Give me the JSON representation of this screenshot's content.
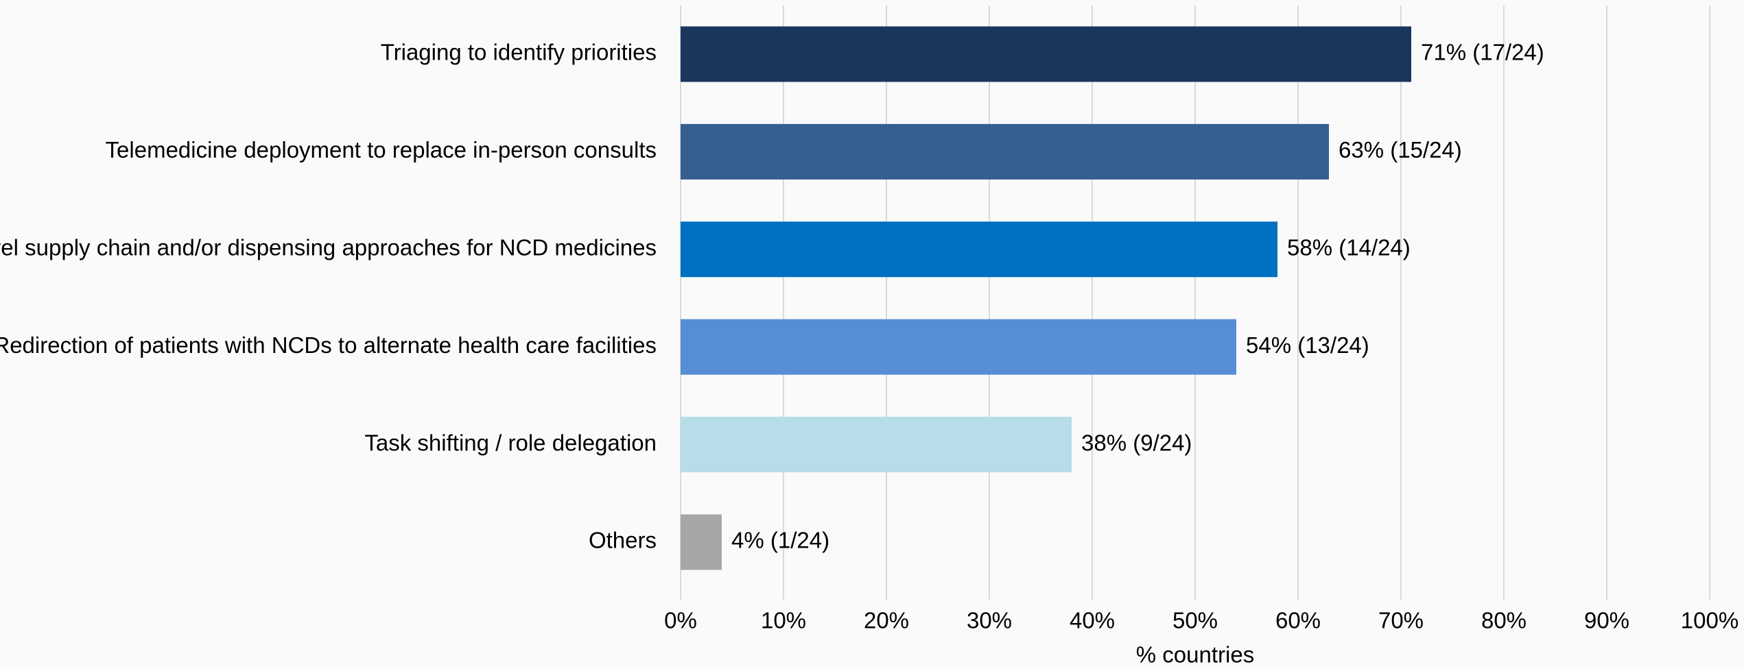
{
  "chart_data": {
    "type": "bar",
    "orientation": "horizontal",
    "categories": [
      "Triaging to identify priorities",
      "Telemedicine deployment to replace in-person consults",
      "Novel supply chain and/or dispensing approaches for NCD medicines",
      "Redirection of patients with NCDs to alternate health care facilities",
      "Task shifting / role delegation",
      "Others"
    ],
    "values": [
      71,
      63,
      58,
      54,
      38,
      4
    ],
    "value_labels": [
      "71% (17/24)",
      "63% (15/24)",
      "58% (14/24)",
      "54% (13/24)",
      "38% (9/24)",
      "4% (1/24)"
    ],
    "colors": [
      "#1b365d",
      "#365f91",
      "#0070c0",
      "#558ed5",
      "#b7dde8",
      "#a6a6a6"
    ],
    "xlabel": "% countries",
    "xlim": [
      0,
      100
    ],
    "xticks": [
      {
        "value": 0,
        "label": "0%"
      },
      {
        "value": 10,
        "label": "10%"
      },
      {
        "value": 20,
        "label": "20%"
      },
      {
        "value": 30,
        "label": "30%"
      },
      {
        "value": 40,
        "label": "40%"
      },
      {
        "value": 50,
        "label": "50%"
      },
      {
        "value": 60,
        "label": "60%"
      },
      {
        "value": 70,
        "label": "70%"
      },
      {
        "value": 80,
        "label": "80%"
      },
      {
        "value": 90,
        "label": "90%"
      },
      {
        "value": 100,
        "label": "100%"
      }
    ],
    "grid": true
  }
}
